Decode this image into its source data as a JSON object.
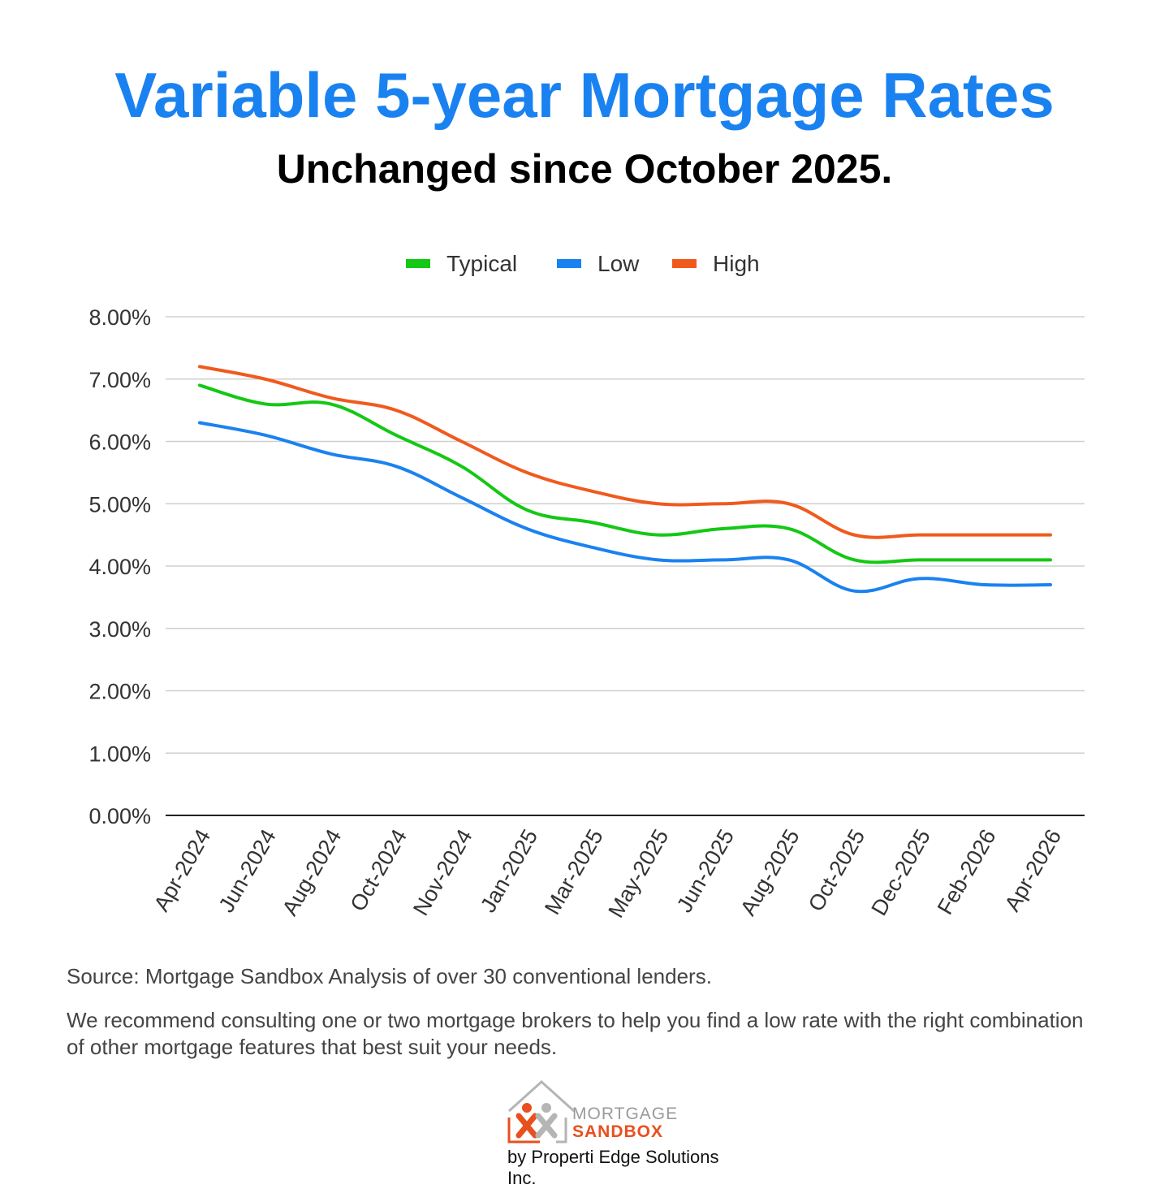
{
  "header": {
    "title": "Variable 5-year Mortgage Rates",
    "subtitle": "Unchanged since October 2025."
  },
  "chart_data": {
    "type": "line",
    "categories": [
      "Apr-2024",
      "Jun-2024",
      "Aug-2024",
      "Oct-2024",
      "Nov-2024",
      "Jan-2025",
      "Mar-2025",
      "May-2025",
      "Jun-2025",
      "Aug-2025",
      "Oct-2025",
      "Dec-2025",
      "Feb-2026",
      "Apr-2026"
    ],
    "y_tick_labels": [
      "0.00%",
      "1.00%",
      "2.00%",
      "3.00%",
      "4.00%",
      "5.00%",
      "6.00%",
      "7.00%",
      "8.00%"
    ],
    "ylim": [
      0,
      8
    ],
    "grid": true,
    "legend_position": "top-center",
    "series": [
      {
        "name": "Typical",
        "color": "#14c814",
        "values": [
          6.9,
          6.6,
          6.6,
          6.1,
          5.6,
          4.9,
          4.7,
          4.5,
          4.6,
          4.6,
          4.1,
          4.1,
          4.1,
          4.1
        ]
      },
      {
        "name": "Low",
        "color": "#1a82f0",
        "values": [
          6.3,
          6.1,
          5.8,
          5.6,
          5.1,
          4.6,
          4.3,
          4.1,
          4.1,
          4.1,
          3.6,
          3.8,
          3.7,
          3.7
        ]
      },
      {
        "name": "High",
        "color": "#f05a1e",
        "values": [
          7.2,
          7.0,
          6.7,
          6.5,
          6.0,
          5.5,
          5.2,
          5.0,
          5.0,
          5.0,
          4.5,
          4.5,
          4.5,
          4.5
        ]
      }
    ]
  },
  "footer": {
    "source": "Source: Mortgage Sandbox Analysis of over 30 conventional lenders.",
    "note": "We recommend consulting one or two mortgage brokers to help you find a low rate with the right combination of other mortgage features that best suit your needs."
  },
  "logo": {
    "line1": "MORTGAGE",
    "line2": "SANDBOX",
    "byline": "by Properti Edge Solutions Inc."
  }
}
